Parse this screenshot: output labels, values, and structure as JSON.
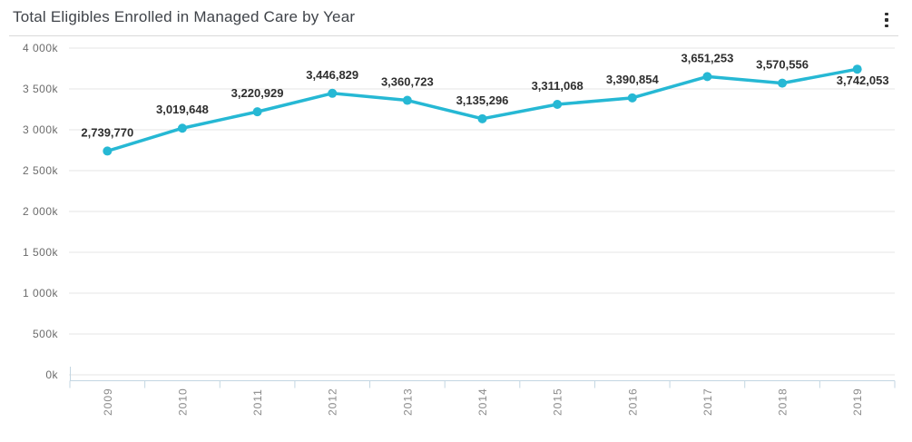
{
  "header": {
    "title": "Total Eligibles Enrolled in Managed Care by Year",
    "menu_icon": "kebab-menu-icon"
  },
  "colors": {
    "background": "#ffffff",
    "series": "#26b8d4",
    "gridline": "#e6e6e6",
    "axis_line": "#c3d6e2",
    "title_text": "#3f4349",
    "value_label_text": "#2e2e2e",
    "y_axis_label_text": "#6b6b6b",
    "x_axis_label_text": "#8a8a8a",
    "divider": "#d9d9d9",
    "kebab_icon": "#2e2e2e"
  },
  "chart_data": {
    "type": "line",
    "title": "Total Eligibles Enrolled in Managed Care by Year",
    "categories": [
      "2009",
      "2010",
      "2011",
      "2012",
      "2013",
      "2014",
      "2015",
      "2016",
      "2017",
      "2018",
      "2019"
    ],
    "values": [
      2739770,
      3019648,
      3220929,
      3446829,
      3360723,
      3135296,
      3311068,
      3390854,
      3651253,
      3570556,
      3742053
    ],
    "value_labels": [
      "2,739,770",
      "3,019,648",
      "3,220,929",
      "3,446,829",
      "3,360,723",
      "3,135,296",
      "3,311,068",
      "3,390,854",
      "3,651,253",
      "3,570,556",
      "3,742,053"
    ],
    "y_tick_labels": [
      "0k",
      "500k",
      "1 000k",
      "1 500k",
      "2 000k",
      "2 500k",
      "3 000k",
      "3 500k",
      "4 000k"
    ],
    "ylim": [
      0,
      4000000
    ],
    "y_tick_step": 500000,
    "xlabel": "",
    "ylabel": "",
    "grid": true,
    "legend": "none",
    "marker": "circle",
    "x_label_rotation": -90
  }
}
